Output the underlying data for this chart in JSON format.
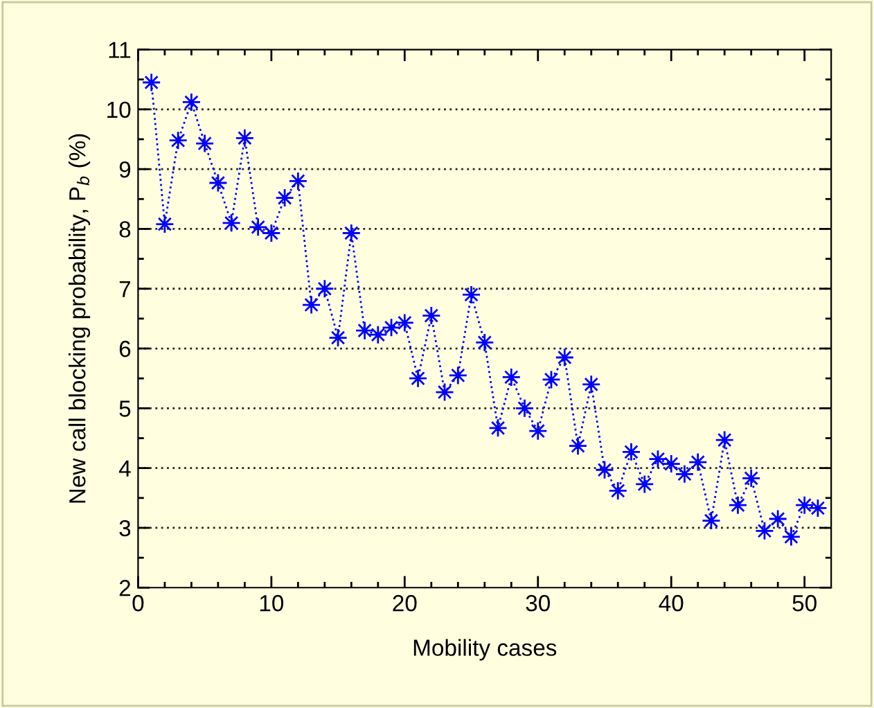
{
  "chart_data": {
    "type": "line",
    "xlabel": "Mobility cases",
    "ylabel": "New call blocking probability, P$_{b}$ (%)",
    "x": [
      1,
      2,
      3,
      4,
      5,
      6,
      7,
      8,
      9,
      10,
      11,
      12,
      13,
      14,
      15,
      16,
      17,
      18,
      19,
      20,
      21,
      22,
      23,
      24,
      25,
      26,
      27,
      28,
      29,
      30,
      31,
      32,
      33,
      34,
      35,
      36,
      37,
      38,
      39,
      40,
      41,
      42,
      43,
      44,
      45,
      46,
      47,
      48,
      49,
      50,
      51
    ],
    "series": [
      {
        "color": "#0000ff",
        "values": [
          10.45,
          8.08,
          9.48,
          10.12,
          9.43,
          8.77,
          8.1,
          9.52,
          8.03,
          7.93,
          8.52,
          8.8,
          6.73,
          7.0,
          6.18,
          7.93,
          6.3,
          6.23,
          6.35,
          6.43,
          5.5,
          6.55,
          5.27,
          5.55,
          6.9,
          6.1,
          4.67,
          5.52,
          5.0,
          4.62,
          5.48,
          5.85,
          4.37,
          5.4,
          3.97,
          3.62,
          4.27,
          3.73,
          4.15,
          4.07,
          3.9,
          4.1,
          3.12,
          4.47,
          3.38,
          3.83,
          2.95,
          3.15,
          2.85,
          3.38,
          3.33
        ]
      }
    ],
    "xlim": [
      0,
      52
    ],
    "xticks": [
      0,
      {
        "value": 2,
        "label": null
      },
      {
        "value": 4,
        "label": null
      },
      {
        "value": 6,
        "label": null
      },
      {
        "value": 8,
        "label": null
      },
      10,
      {
        "value": 12,
        "label": null
      },
      {
        "value": 14,
        "label": null
      },
      {
        "value": 16,
        "label": null
      },
      {
        "value": 18,
        "label": null
      },
      20,
      {
        "value": 22,
        "label": null
      },
      {
        "value": 24,
        "label": null
      },
      {
        "value": 26,
        "label": null
      },
      {
        "value": 28,
        "label": null
      },
      30,
      {
        "value": 32,
        "label": null
      },
      {
        "value": 34,
        "label": null
      },
      {
        "value": 36,
        "label": null
      },
      {
        "value": 38,
        "label": null
      },
      40,
      {
        "value": 42,
        "label": null
      },
      {
        "value": 44,
        "label": null
      },
      {
        "value": 46,
        "label": null
      },
      {
        "value": 48,
        "label": null
      },
      50
    ],
    "ylim": [
      2,
      11
    ],
    "yticks": [
      2,
      {
        "value": 2.5,
        "label": null
      },
      3,
      {
        "value": 3.5,
        "label": null
      },
      4,
      {
        "value": 4.5,
        "label": null
      },
      5,
      {
        "value": 5.5,
        "label": null
      },
      6,
      {
        "value": 6.5,
        "label": null
      },
      7,
      {
        "value": 7.5,
        "label": null
      },
      8,
      {
        "value": 8.5,
        "label": null
      },
      9,
      {
        "value": 9.5,
        "label": null
      },
      10,
      {
        "value": 10.5,
        "label": null
      },
      11
    ],
    "grid": "y",
    "marker": "star",
    "line_style": "dotted"
  }
}
